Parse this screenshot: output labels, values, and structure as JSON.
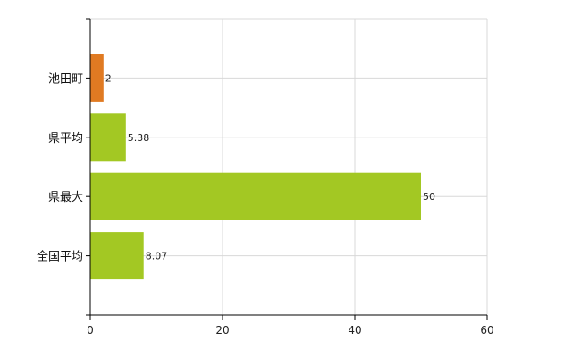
{
  "chart_data": {
    "type": "bar",
    "orientation": "horizontal",
    "categories": [
      "池田町",
      "県平均",
      "県最大",
      "全国平均"
    ],
    "values": [
      2,
      5.38,
      50,
      8.07
    ],
    "value_labels": [
      "2",
      "5.38",
      "50",
      "8.07"
    ],
    "bar_colors": [
      "#e07a22",
      "#a3c823",
      "#a3c823",
      "#a3c823"
    ],
    "xlim": [
      0,
      60
    ],
    "x_ticks": [
      "0",
      "20",
      "40",
      "60"
    ],
    "grid": true,
    "title": "",
    "xlabel": "",
    "ylabel": ""
  }
}
